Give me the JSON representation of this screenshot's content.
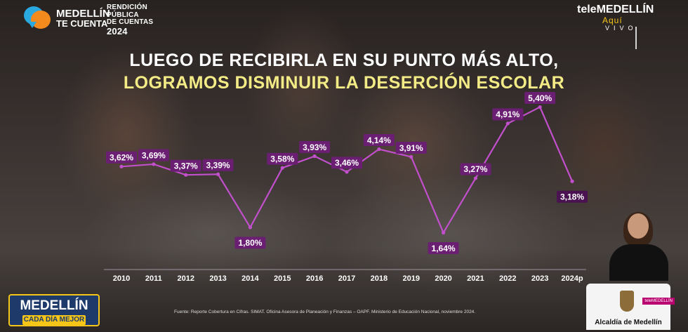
{
  "header": {
    "logo_line1": "MEDELLÍN",
    "logo_line2": "TE CUENTA",
    "rendicion_line1": "RENDICIÓN",
    "rendicion_line2": "PÚBLICA",
    "rendicion_line3": "DE CUENTAS",
    "rendicion_year": "2024",
    "channel_tele": "tele",
    "channel_name": "MEDELLÍN",
    "aqui": "Aquí",
    "vivo": "VIVO"
  },
  "title_line1": "LUEGO DE RECIBIRLA EN SU  PUNTO MÁS ALTO,",
  "title_line2": "LOGRAMOS DISMINUIR LA DESERCIÓN ESCOLAR",
  "chart_data": {
    "type": "line",
    "categories": [
      "2010",
      "2011",
      "2012",
      "2013",
      "2014",
      "2015",
      "2016",
      "2017",
      "2018",
      "2019",
      "2020",
      "2021",
      "2022",
      "2023",
      "2024p"
    ],
    "series": [
      {
        "values": [
          3.62,
          3.69,
          3.37,
          3.39,
          1.8,
          3.58,
          3.93,
          3.46,
          4.14,
          3.91,
          1.64,
          3.27,
          4.91,
          5.4,
          3.18
        ],
        "labels": [
          "3,62%",
          "3,69%",
          "3,37%",
          "3,39%",
          "1,80%",
          "3,58%",
          "3,93%",
          "3,46%",
          "4,14%",
          "3,91%",
          "1,64%",
          "3,27%",
          "4,91%",
          "5,40%",
          "3,18%"
        ]
      }
    ],
    "title": "",
    "xlabel": "",
    "ylabel": "",
    "line_color": "#c24fcc",
    "label_color": "#6b1f73",
    "grid": false
  },
  "source": "Fuente: Reporte Cobertura en Cifras. SIMAT. Oficina Asesora de Planeación y Finanzas – OAPF. Ministerio de Educación Nacional, noviembre 2024.",
  "footer": {
    "slogan_line1": "MEDELLÍN",
    "slogan_line2": "CADA DÍA MEJOR",
    "alcaldia": "Alcaldía de Medellín",
    "badge": "teleMEDELLÍN"
  }
}
